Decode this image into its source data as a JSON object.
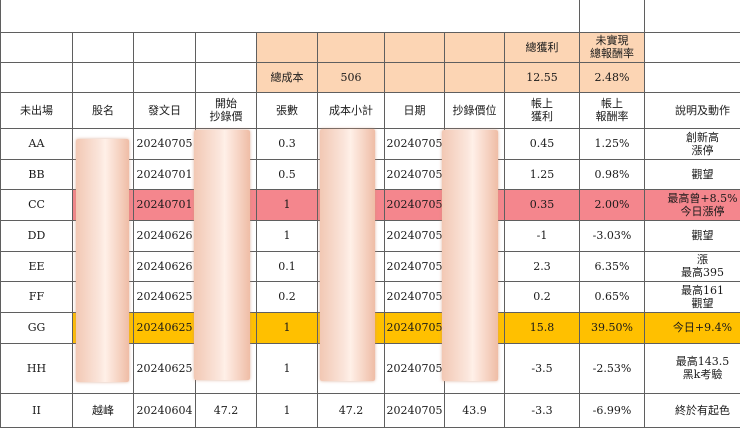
{
  "summary": {
    "total_profit_label": "總獲利",
    "unrealized_label_1": "未實現",
    "unrealized_label_2": "總報酬率",
    "total_cost_label": "總成本",
    "total_cost_value": "506",
    "total_profit_value": "12.55",
    "unrealized_value": "2.48%"
  },
  "headers": {
    "exit": "未出場",
    "name": "股名",
    "post_date": "發文日",
    "start_price_1": "開始",
    "start_price_2": "抄錄價",
    "shares": "張數",
    "cost_subtotal": "成本小計",
    "date": "日期",
    "record_price": "抄錄價位",
    "book_profit_1": "帳上",
    "book_profit_2": "獲利",
    "book_return_1": "帳上",
    "book_return_2": "報酬率",
    "notes": "說明及動作"
  },
  "rows": [
    {
      "code": "AA",
      "name": "",
      "post_date": "20240705",
      "start_price": "",
      "shares": "0.3",
      "cost": "",
      "date": "20240705",
      "price": "",
      "profit": "0.45",
      "ret": "1.25%",
      "note1": "創新高",
      "note2": "漲停",
      "hl": ""
    },
    {
      "code": "BB",
      "name": "",
      "post_date": "20240701",
      "start_price": "",
      "shares": "0.5",
      "cost": "",
      "date": "20240705",
      "price": "",
      "profit": "1.25",
      "ret": "0.98%",
      "note1": "觀望",
      "note2": "",
      "hl": ""
    },
    {
      "code": "CC",
      "name": "",
      "post_date": "20240701",
      "start_price": "",
      "shares": "1",
      "cost": "",
      "date": "20240705",
      "price": "",
      "profit": "0.35",
      "ret": "2.00%",
      "note1": "最高曾+8.5%",
      "note2": "今日漲停",
      "hl": "red"
    },
    {
      "code": "DD",
      "name": "",
      "post_date": "20240626",
      "start_price": "",
      "shares": "1",
      "cost": "",
      "date": "20240705",
      "price": "",
      "profit": "-1",
      "ret": "-3.03%",
      "note1": "觀望",
      "note2": "",
      "hl": ""
    },
    {
      "code": "EE",
      "name": "",
      "post_date": "20240626",
      "start_price": "",
      "shares": "0.1",
      "cost": "",
      "date": "20240705",
      "price": "",
      "profit": "2.3",
      "ret": "6.35%",
      "note1": "漲",
      "note2": "最高395",
      "hl": ""
    },
    {
      "code": "FF",
      "name": "",
      "post_date": "20240625",
      "start_price": "",
      "shares": "0.2",
      "cost": "",
      "date": "20240705",
      "price": "",
      "profit": "0.2",
      "ret": "0.65%",
      "note1": "最高161",
      "note2": "觀望",
      "hl": ""
    },
    {
      "code": "GG",
      "name": "",
      "post_date": "20240625",
      "start_price": "",
      "shares": "1",
      "cost": "",
      "date": "20240705",
      "price": "",
      "profit": "15.8",
      "ret": "39.50%",
      "note1": "今日+9.4%",
      "note2": "",
      "hl": "gold"
    },
    {
      "code": "HH",
      "name": "",
      "post_date": "20240625",
      "start_price": "",
      "shares": "1",
      "cost": "",
      "date": "20240705",
      "price": "",
      "profit": "-3.5",
      "ret": "-2.53%",
      "note1": "最高143.5",
      "note2": "黑k考驗",
      "hl": ""
    },
    {
      "code": "II",
      "name": "越峰",
      "post_date": "20240604",
      "start_price": "47.2",
      "shares": "1",
      "cost": "47.2",
      "date": "20240705",
      "price": "43.9",
      "profit": "-3.3",
      "ret": "-6.99%",
      "note1": "終於有起色",
      "note2": "",
      "hl": ""
    }
  ]
}
